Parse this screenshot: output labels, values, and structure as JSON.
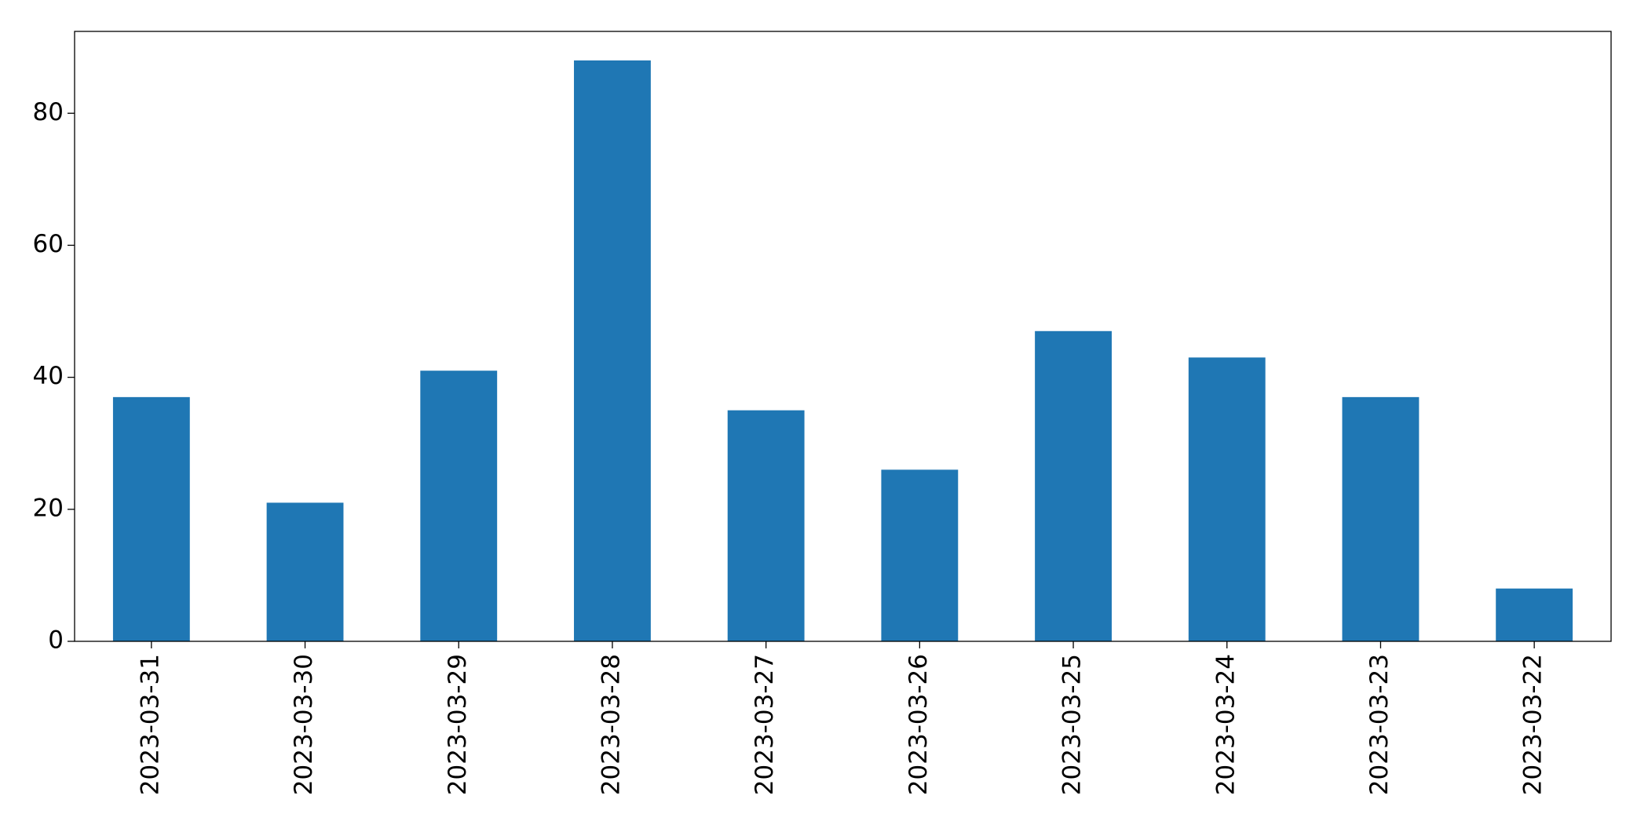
{
  "chart_data": {
    "type": "bar",
    "categories": [
      "2023-03-31",
      "2023-03-30",
      "2023-03-29",
      "2023-03-28",
      "2023-03-27",
      "2023-03-26",
      "2023-03-25",
      "2023-03-24",
      "2023-03-23",
      "2023-03-22"
    ],
    "values": [
      37,
      21,
      41,
      88,
      35,
      26,
      47,
      43,
      37,
      8
    ],
    "color": "#1f77b4",
    "ylim": [
      0,
      92.4
    ],
    "yticks": [
      0,
      20,
      40,
      60,
      80
    ],
    "grid": false
  }
}
